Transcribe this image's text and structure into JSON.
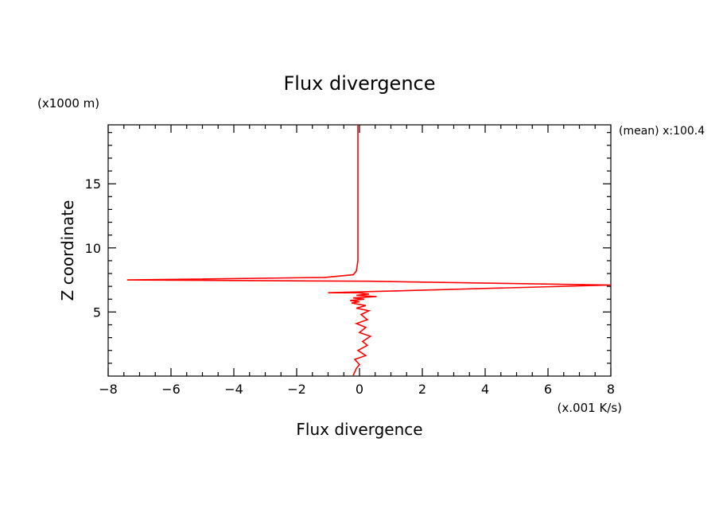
{
  "chart_data": {
    "type": "line",
    "title": "Flux divergence",
    "xlabel": "Flux divergence",
    "ylabel": "Z coordinate",
    "x_units": "(x.001 K/s)",
    "y_units": "(x1000 m)",
    "annotation": "(mean) x:100.4",
    "xlim": [
      -8,
      8
    ],
    "ylim": [
      0,
      19.6
    ],
    "x_ticks": [
      "-8",
      "-6",
      "-4",
      "-2",
      "0",
      "2",
      "4",
      "6",
      "8"
    ],
    "y_ticks": [
      "5",
      "10",
      "15"
    ],
    "grid": false,
    "line_color": "#ff0000",
    "series": [
      {
        "x": [
          -0.2,
          -0.1,
          0.0,
          -0.15,
          0.2,
          -0.05,
          0.25,
          0.1,
          0.35,
          0.0,
          0.2,
          -0.1,
          0.25,
          0.05,
          0.3,
          -0.1,
          0.2,
          -0.25,
          0.0,
          -0.3,
          0.15,
          -0.2,
          0.55,
          -0.1,
          0.3,
          -0.05,
          -1.0,
          0.5,
          8.0,
          0.3,
          -7.4,
          -1.1,
          -0.2,
          -0.1,
          -0.05,
          -0.05,
          -0.05,
          -0.05
        ],
        "y": [
          0.05,
          0.6,
          0.9,
          1.3,
          1.6,
          2.0,
          2.4,
          2.7,
          3.1,
          3.4,
          3.8,
          4.1,
          4.4,
          4.8,
          5.1,
          5.3,
          5.5,
          5.7,
          5.8,
          5.9,
          6.0,
          6.1,
          6.2,
          6.3,
          6.4,
          6.5,
          6.5,
          6.6,
          7.1,
          7.4,
          7.5,
          7.7,
          7.9,
          8.2,
          9.0,
          12.0,
          16.0,
          19.6
        ]
      }
    ]
  }
}
